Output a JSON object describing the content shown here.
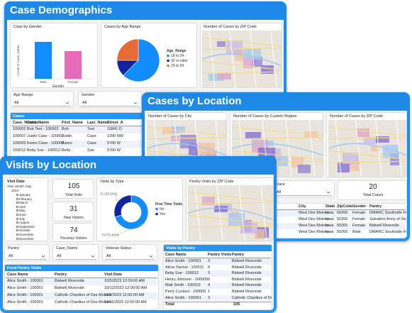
{
  "demographics": {
    "title": "Case Demographics",
    "gender_chart": {
      "type": "bar",
      "title": "Case by Gender",
      "y_label": "Count of Case_Name",
      "x_label": "Gender",
      "categories": [
        "Male",
        "Female"
      ],
      "values": [
        4,
        3
      ],
      "colors": [
        "#118dff",
        "#e66cb9"
      ]
    },
    "age_chart": {
      "type": "pie",
      "title": "Cases by Age Range",
      "legend_title": "Age_Range",
      "categories": [
        "18 to 24",
        "30 or older",
        "25 to 29"
      ],
      "values": [
        5,
        1,
        2
      ],
      "colors": [
        "#118dff",
        "#12239e",
        "#e66c37"
      ]
    },
    "zip_map": {
      "title": "Number of Cases by ZIP Code"
    },
    "slicers": [
      {
        "label": "Age Range",
        "value": "All"
      },
      {
        "label": "Gender",
        "value": "All"
      }
    ],
    "table": {
      "title": "Cases",
      "columns": [
        "Case_Number",
        "Case_Name",
        "First_Name",
        "Last_Name",
        "Street_A"
      ],
      "rows": [
        [
          "100002",
          "Bob Test - 100002",
          "Bob",
          "Test",
          "10841 D"
        ],
        [
          "100007",
          "Justin Case - 100007",
          "Justin",
          "Case",
          "1390 NW"
        ],
        [
          "100009",
          "Karen Case - 100009",
          "Karen",
          "Case",
          "5700 W"
        ],
        [
          "100012",
          "Betty Sue - 100012",
          "Betty",
          "Sue",
          "5700 W"
        ]
      ]
    }
  },
  "location": {
    "title": "Cases by Location",
    "maps": [
      "Number of Cases by City",
      "Number of Cases by Custom Region",
      "Number of Cases by ZIP Code"
    ],
    "slicer": {
      "label": "Race",
      "value": "All"
    },
    "card": {
      "value": 20,
      "label": "Total Cases"
    },
    "table": {
      "columns": [
        "City",
        "State",
        "ZipCode",
        "Gender",
        "Pantry"
      ],
      "rows": [
        [
          "West Des Moines",
          "Iowa",
          "50266",
          "Female",
          "DMARC Southside Food Pa"
        ],
        [
          "West Des Moines",
          "Iowa",
          "50266",
          "Female",
          "Salvation Army of Des Moines"
        ],
        [
          "West Des Moines",
          "Iowa",
          "50265",
          "Female",
          "Bidwell Riverside"
        ],
        [
          "West Des Moines",
          "Iowa",
          "50266",
          "Male",
          "DMARC Southside Food Pa"
        ]
      ]
    }
  },
  "visits": {
    "title": "Visits by Location",
    "date_slicer": {
      "title": "Visit Date",
      "hierarchy": "Year, Month, Day",
      "year": "2023",
      "months": [
        "January",
        "February",
        "March",
        "April",
        "May",
        "June",
        "July",
        "August",
        "September",
        "October",
        "November",
        "December"
      ]
    },
    "cards": [
      {
        "value": 105,
        "label": "Total Visits"
      },
      {
        "value": 31,
        "label": "New Visitors"
      },
      {
        "value": 74,
        "label": "Previous Visitors"
      }
    ],
    "type_chart": {
      "type": "donut",
      "title": "Visits by Type",
      "legend_title": "First Time Visitor",
      "categories": [
        "No",
        "Yes"
      ],
      "values": [
        74,
        31
      ],
      "value_labels": [
        "74 (70.48%)",
        "31 (29.52%)"
      ],
      "colors": [
        "#118dff",
        "#12239e"
      ]
    },
    "zip_map": {
      "title": "Pantry Visits by ZIP Code"
    },
    "slicers": [
      {
        "label": "Pantry",
        "value": "All"
      },
      {
        "label": "Case_Name",
        "value": "All"
      },
      {
        "label": "Veteran Status",
        "value": "All"
      }
    ],
    "pantry_table": {
      "title": "Visits by Pantry",
      "columns": [
        "Case Name",
        "Pantry Visits",
        "Pantry"
      ],
      "rows": [
        [
          "Alice Smith - 100001",
          3,
          "Bidwell Riverside"
        ],
        [
          "Alicia Yarrow - 100011",
          8,
          "Bidwell Riverside"
        ],
        [
          "Betty Sue - 100012",
          3,
          "Bidwell Riverside"
        ],
        [
          "Henry Johnson - 100005",
          6,
          "Bidwell Riverside"
        ],
        [
          "Matt Smith - 100010",
          4,
          "Bidwell Riverside"
        ],
        [
          "Perry Custard - 100006",
          1,
          "Bidwell Riverside"
        ],
        [
          "Alice Smith - 100001",
          3,
          "Catholic Charities of Des Moi"
        ]
      ],
      "total": [
        "Total",
        105
      ]
    },
    "visit_table": {
      "title": "Food Pantry Visits",
      "columns": [
        "Case Name",
        "Pantry",
        "Visit Date"
      ],
      "rows": [
        [
          "Alice Smith - 100001",
          "Bidwell Riverside",
          "10/5/2023 12:00:00 AM"
        ],
        [
          "Alice Smith - 100001",
          "Bidwell Riverside",
          "10/12/2023 12:00:00 AM"
        ],
        [
          "Alice Smith - 100001",
          "Catholic Charities of Des Moines",
          "11/9/2023 12:00:00 AM"
        ],
        [
          "Alice Smith - 100001",
          "Catholic Charities of Des Moines",
          "11/16/2023 12:00:00 AM"
        ]
      ]
    }
  }
}
